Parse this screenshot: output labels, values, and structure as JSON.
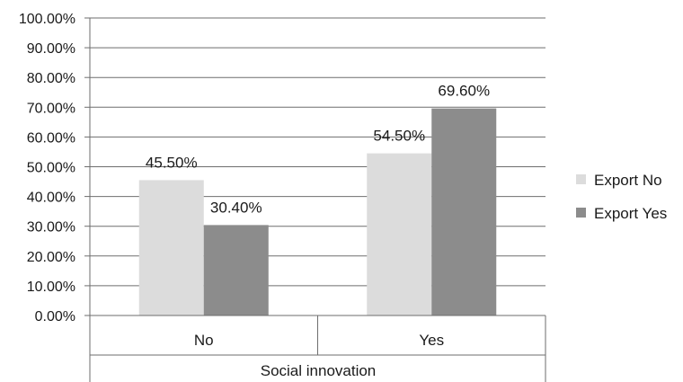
{
  "chart_data": {
    "type": "bar",
    "categories": [
      "No",
      "Yes"
    ],
    "group_label": "Social innovation",
    "series": [
      {
        "name": "Export No",
        "values": [
          45.5,
          54.5
        ],
        "labels": [
          "45.50%",
          "54.50%"
        ],
        "color": "#dcdcdc"
      },
      {
        "name": "Export Yes",
        "values": [
          30.4,
          69.6
        ],
        "labels": [
          "30.40%",
          "69.60%"
        ],
        "color": "#8c8c8c"
      }
    ],
    "yticks": [
      "0.00%",
      "10.00%",
      "20.00%",
      "30.00%",
      "40.00%",
      "50.00%",
      "60.00%",
      "70.00%",
      "80.00%",
      "90.00%",
      "100.00%"
    ],
    "ylim": [
      0,
      100
    ],
    "grid": true,
    "legend_position": "right",
    "gridline_color": "#6e6e6e",
    "axis_color": "#6e6e6e"
  }
}
